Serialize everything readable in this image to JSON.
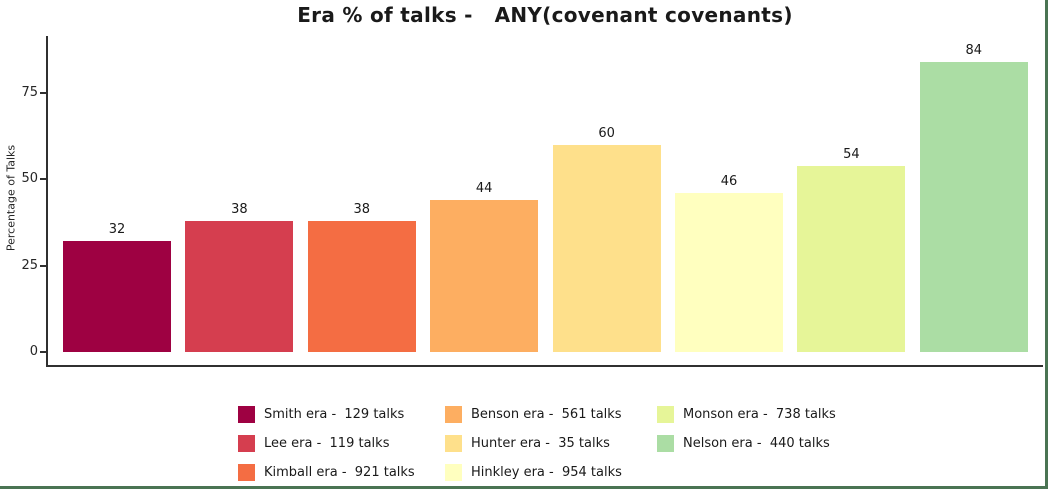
{
  "chart_data": {
    "type": "bar",
    "title": "Era % of talks -   ANY(covenant covenants)",
    "ylabel": "Percentage of Talks",
    "xlabel": "",
    "yticks": [
      0,
      25,
      50,
      75
    ],
    "ylim": [
      -4,
      91
    ],
    "grid": false,
    "legend_position": "bottom-center, 3 columns",
    "categories": [
      "Smith era",
      "Lee era",
      "Kimball era",
      "Benson era",
      "Hunter era",
      "Hinkley era",
      "Monson era",
      "Nelson era"
    ],
    "values": [
      32,
      38,
      38,
      44,
      60,
      46,
      54,
      84
    ],
    "talks_counts": [
      129,
      119,
      921,
      561,
      35,
      954,
      738,
      440
    ],
    "bar_value_labels": [
      "32",
      "38",
      "38",
      "44",
      "60",
      "46",
      "54",
      "84"
    ],
    "bar_colors": [
      "#9e0142",
      "#d53e4f",
      "#f46d43",
      "#fdae61",
      "#fee08b",
      "#ffffbf",
      "#e6f598",
      "#abdda4"
    ],
    "legend_labels": [
      "Smith era -  129 talks",
      "Lee era -  119 talks",
      "Kimball era -  921 talks",
      "Benson era -  561 talks",
      "Hunter era -  35 talks",
      "Hinkley era -  954 talks",
      "Monson era -  738 talks",
      "Nelson era -  440 talks"
    ],
    "legend_columns": [
      [
        0,
        1,
        2
      ],
      [
        3,
        4,
        5
      ],
      [
        6,
        7
      ]
    ]
  },
  "frame": {
    "border_color": "#4a7453"
  }
}
